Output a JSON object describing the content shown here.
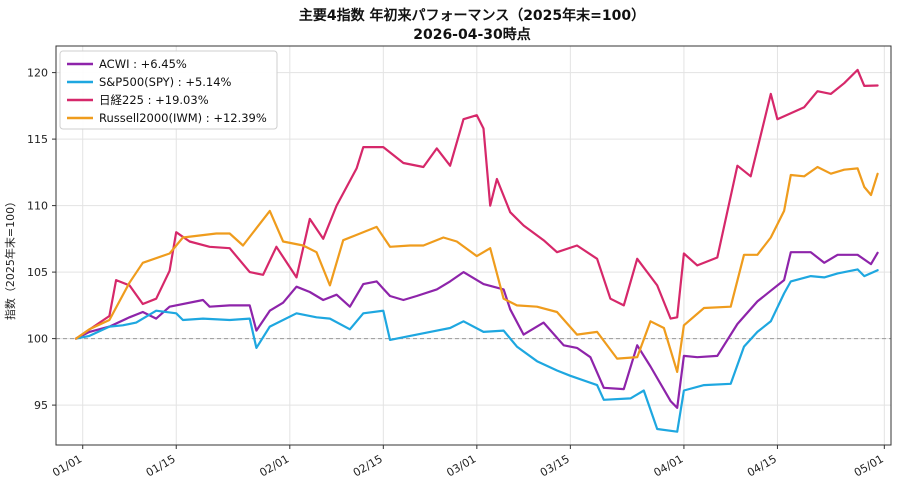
{
  "chart_data": {
    "type": "line",
    "title": "主要4指数 年初来パフォーマンス（2025年末=100）",
    "subtitle": "2026-04-30時点",
    "xlabel": "",
    "ylabel": "指数（2025年末=100）",
    "ylim": [
      92,
      122
    ],
    "yticks": [
      95,
      100,
      105,
      110,
      115,
      120
    ],
    "xlim": [
      "2025-12-28",
      "2026-05-02"
    ],
    "xticks": [
      "2026-01-01",
      "2026-01-15",
      "2026-02-01",
      "2026-02-15",
      "2026-03-01",
      "2026-03-15",
      "2026-04-01",
      "2026-04-15",
      "2026-05-01"
    ],
    "xtick_labels": [
      "01/01",
      "01/15",
      "02/01",
      "02/15",
      "03/01",
      "03/15",
      "04/01",
      "04/15",
      "05/01"
    ],
    "baseline": 100,
    "grid": true,
    "legend_position": "top-left",
    "series": [
      {
        "name": "ACWI : +6.45%",
        "color": "#8e24aa",
        "points": [
          [
            "2025-12-31",
            100.0
          ],
          [
            "2026-01-02",
            100.5
          ],
          [
            "2026-01-05",
            100.9
          ],
          [
            "2026-01-08",
            101.6
          ],
          [
            "2026-01-10",
            102.0
          ],
          [
            "2026-01-12",
            101.5
          ],
          [
            "2026-01-14",
            102.4
          ],
          [
            "2026-01-19",
            102.9
          ],
          [
            "2026-01-20",
            102.4
          ],
          [
            "2026-01-23",
            102.5
          ],
          [
            "2026-01-26",
            102.5
          ],
          [
            "2026-01-27",
            100.6
          ],
          [
            "2026-01-29",
            102.1
          ],
          [
            "2026-01-31",
            102.7
          ],
          [
            "2026-02-02",
            103.9
          ],
          [
            "2026-02-04",
            103.5
          ],
          [
            "2026-02-06",
            102.9
          ],
          [
            "2026-02-08",
            103.3
          ],
          [
            "2026-02-10",
            102.4
          ],
          [
            "2026-02-12",
            104.1
          ],
          [
            "2026-02-14",
            104.3
          ],
          [
            "2026-02-16",
            103.2
          ],
          [
            "2026-02-18",
            102.9
          ],
          [
            "2026-02-20",
            103.2
          ],
          [
            "2026-02-23",
            103.7
          ],
          [
            "2026-02-25",
            104.3
          ],
          [
            "2026-02-27",
            105.0
          ],
          [
            "2026-03-02",
            104.1
          ],
          [
            "2026-03-05",
            103.7
          ],
          [
            "2026-03-06",
            102.2
          ],
          [
            "2026-03-08",
            100.3
          ],
          [
            "2026-03-11",
            101.2
          ],
          [
            "2026-03-14",
            99.5
          ],
          [
            "2026-03-16",
            99.3
          ],
          [
            "2026-03-18",
            98.6
          ],
          [
            "2026-03-20",
            96.3
          ],
          [
            "2026-03-23",
            96.2
          ],
          [
            "2026-03-25",
            99.5
          ],
          [
            "2026-03-27",
            97.9
          ],
          [
            "2026-03-30",
            95.3
          ],
          [
            "2026-03-31",
            94.8
          ],
          [
            "2026-04-01",
            98.7
          ],
          [
            "2026-04-03",
            98.6
          ],
          [
            "2026-04-06",
            98.7
          ],
          [
            "2026-04-09",
            101.1
          ],
          [
            "2026-04-12",
            102.8
          ],
          [
            "2026-04-14",
            103.6
          ],
          [
            "2026-04-16",
            104.4
          ],
          [
            "2026-04-17",
            106.5
          ],
          [
            "2026-04-20",
            106.5
          ],
          [
            "2026-04-22",
            105.7
          ],
          [
            "2026-04-24",
            106.3
          ],
          [
            "2026-04-27",
            106.3
          ],
          [
            "2026-04-29",
            105.6
          ],
          [
            "2026-04-30",
            106.45
          ]
        ]
      },
      {
        "name": "S&P500(SPY) : +5.14%",
        "color": "#1ea7e0",
        "points": [
          [
            "2025-12-31",
            100.0
          ],
          [
            "2026-01-02",
            100.2
          ],
          [
            "2026-01-05",
            100.9
          ],
          [
            "2026-01-07",
            101.0
          ],
          [
            "2026-01-09",
            101.2
          ],
          [
            "2026-01-12",
            102.1
          ],
          [
            "2026-01-15",
            101.9
          ],
          [
            "2026-01-16",
            101.4
          ],
          [
            "2026-01-19",
            101.5
          ],
          [
            "2026-01-23",
            101.4
          ],
          [
            "2026-01-26",
            101.5
          ],
          [
            "2026-01-27",
            99.3
          ],
          [
            "2026-01-29",
            100.9
          ],
          [
            "2026-02-02",
            101.9
          ],
          [
            "2026-02-05",
            101.6
          ],
          [
            "2026-02-07",
            101.5
          ],
          [
            "2026-02-10",
            100.7
          ],
          [
            "2026-02-12",
            101.9
          ],
          [
            "2026-02-15",
            102.1
          ],
          [
            "2026-02-16",
            99.9
          ],
          [
            "2026-02-19",
            100.2
          ],
          [
            "2026-02-22",
            100.5
          ],
          [
            "2026-02-25",
            100.8
          ],
          [
            "2026-02-27",
            101.3
          ],
          [
            "2026-03-02",
            100.5
          ],
          [
            "2026-03-05",
            100.6
          ],
          [
            "2026-03-07",
            99.4
          ],
          [
            "2026-03-10",
            98.3
          ],
          [
            "2026-03-13",
            97.6
          ],
          [
            "2026-03-15",
            97.2
          ],
          [
            "2026-03-19",
            96.5
          ],
          [
            "2026-03-20",
            95.4
          ],
          [
            "2026-03-24",
            95.5
          ],
          [
            "2026-03-26",
            96.1
          ],
          [
            "2026-03-28",
            93.2
          ],
          [
            "2026-03-31",
            93.0
          ],
          [
            "2026-04-01",
            96.1
          ],
          [
            "2026-04-04",
            96.5
          ],
          [
            "2026-04-08",
            96.6
          ],
          [
            "2026-04-10",
            99.4
          ],
          [
            "2026-04-12",
            100.5
          ],
          [
            "2026-04-14",
            101.3
          ],
          [
            "2026-04-16",
            103.4
          ],
          [
            "2026-04-17",
            104.3
          ],
          [
            "2026-04-20",
            104.7
          ],
          [
            "2026-04-22",
            104.6
          ],
          [
            "2026-04-24",
            104.9
          ],
          [
            "2026-04-27",
            105.2
          ],
          [
            "2026-04-28",
            104.7
          ],
          [
            "2026-04-30",
            105.14
          ]
        ]
      },
      {
        "name": "日経225 : +19.03%",
        "color": "#d6286a",
        "points": [
          [
            "2025-12-31",
            100.0
          ],
          [
            "2026-01-05",
            101.7
          ],
          [
            "2026-01-06",
            104.4
          ],
          [
            "2026-01-08",
            104.0
          ],
          [
            "2026-01-10",
            102.6
          ],
          [
            "2026-01-12",
            103.0
          ],
          [
            "2026-01-14",
            105.1
          ],
          [
            "2026-01-15",
            108.0
          ],
          [
            "2026-01-17",
            107.3
          ],
          [
            "2026-01-20",
            106.9
          ],
          [
            "2026-01-23",
            106.8
          ],
          [
            "2026-01-26",
            105.0
          ],
          [
            "2026-01-28",
            104.8
          ],
          [
            "2026-01-30",
            106.9
          ],
          [
            "2026-02-02",
            104.6
          ],
          [
            "2026-02-04",
            109.0
          ],
          [
            "2026-02-06",
            107.5
          ],
          [
            "2026-02-08",
            110.0
          ],
          [
            "2026-02-11",
            112.8
          ],
          [
            "2026-02-12",
            114.4
          ],
          [
            "2026-02-15",
            114.4
          ],
          [
            "2026-02-18",
            113.2
          ],
          [
            "2026-02-21",
            112.9
          ],
          [
            "2026-02-23",
            114.3
          ],
          [
            "2026-02-25",
            113.0
          ],
          [
            "2026-02-27",
            116.5
          ],
          [
            "2026-03-01",
            116.8
          ],
          [
            "2026-03-02",
            115.8
          ],
          [
            "2026-03-03",
            110.0
          ],
          [
            "2026-03-04",
            112.0
          ],
          [
            "2026-03-06",
            109.5
          ],
          [
            "2026-03-08",
            108.5
          ],
          [
            "2026-03-11",
            107.4
          ],
          [
            "2026-03-13",
            106.5
          ],
          [
            "2026-03-16",
            107.0
          ],
          [
            "2026-03-19",
            106.0
          ],
          [
            "2026-03-21",
            103.0
          ],
          [
            "2026-03-23",
            102.5
          ],
          [
            "2026-03-25",
            106.0
          ],
          [
            "2026-03-28",
            104.0
          ],
          [
            "2026-03-30",
            101.5
          ],
          [
            "2026-03-31",
            101.6
          ],
          [
            "2026-04-01",
            106.4
          ],
          [
            "2026-04-03",
            105.5
          ],
          [
            "2026-04-06",
            106.1
          ],
          [
            "2026-04-09",
            113.0
          ],
          [
            "2026-04-11",
            112.2
          ],
          [
            "2026-04-14",
            118.4
          ],
          [
            "2026-04-15",
            116.5
          ],
          [
            "2026-04-19",
            117.4
          ],
          [
            "2026-04-21",
            118.6
          ],
          [
            "2026-04-23",
            118.4
          ],
          [
            "2026-04-25",
            119.2
          ],
          [
            "2026-04-27",
            120.2
          ],
          [
            "2026-04-28",
            119.0
          ],
          [
            "2026-04-30",
            119.03
          ]
        ]
      },
      {
        "name": "Russell2000(IWM) : +12.39%",
        "color": "#ef9c1d",
        "points": [
          [
            "2025-12-31",
            100.0
          ],
          [
            "2026-01-02",
            100.7
          ],
          [
            "2026-01-05",
            101.4
          ],
          [
            "2026-01-08",
            104.2
          ],
          [
            "2026-01-10",
            105.7
          ],
          [
            "2026-01-14",
            106.4
          ],
          [
            "2026-01-16",
            107.6
          ],
          [
            "2026-01-21",
            107.9
          ],
          [
            "2026-01-23",
            107.9
          ],
          [
            "2026-01-25",
            107.0
          ],
          [
            "2026-01-27",
            108.3
          ],
          [
            "2026-01-29",
            109.6
          ],
          [
            "2026-01-31",
            107.3
          ],
          [
            "2026-02-03",
            107.0
          ],
          [
            "2026-02-05",
            106.5
          ],
          [
            "2026-02-07",
            104.0
          ],
          [
            "2026-02-09",
            107.4
          ],
          [
            "2026-02-11",
            107.8
          ],
          [
            "2026-02-14",
            108.4
          ],
          [
            "2026-02-16",
            106.9
          ],
          [
            "2026-02-19",
            107.0
          ],
          [
            "2026-02-21",
            107.0
          ],
          [
            "2026-02-24",
            107.6
          ],
          [
            "2026-02-26",
            107.3
          ],
          [
            "2026-03-01",
            106.2
          ],
          [
            "2026-03-03",
            106.8
          ],
          [
            "2026-03-05",
            103.0
          ],
          [
            "2026-03-07",
            102.5
          ],
          [
            "2026-03-10",
            102.4
          ],
          [
            "2026-03-13",
            102.0
          ],
          [
            "2026-03-16",
            100.3
          ],
          [
            "2026-03-19",
            100.5
          ],
          [
            "2026-03-22",
            98.5
          ],
          [
            "2026-03-25",
            98.6
          ],
          [
            "2026-03-27",
            101.3
          ],
          [
            "2026-03-29",
            100.8
          ],
          [
            "2026-03-31",
            97.5
          ],
          [
            "2026-04-01",
            101.0
          ],
          [
            "2026-04-04",
            102.3
          ],
          [
            "2026-04-08",
            102.4
          ],
          [
            "2026-04-10",
            106.3
          ],
          [
            "2026-04-12",
            106.3
          ],
          [
            "2026-04-14",
            107.6
          ],
          [
            "2026-04-16",
            109.6
          ],
          [
            "2026-04-17",
            112.3
          ],
          [
            "2026-04-19",
            112.2
          ],
          [
            "2026-04-21",
            112.9
          ],
          [
            "2026-04-23",
            112.4
          ],
          [
            "2026-04-25",
            112.7
          ],
          [
            "2026-04-27",
            112.8
          ],
          [
            "2026-04-28",
            111.4
          ],
          [
            "2026-04-29",
            110.8
          ],
          [
            "2026-04-30",
            112.39
          ]
        ]
      }
    ]
  }
}
